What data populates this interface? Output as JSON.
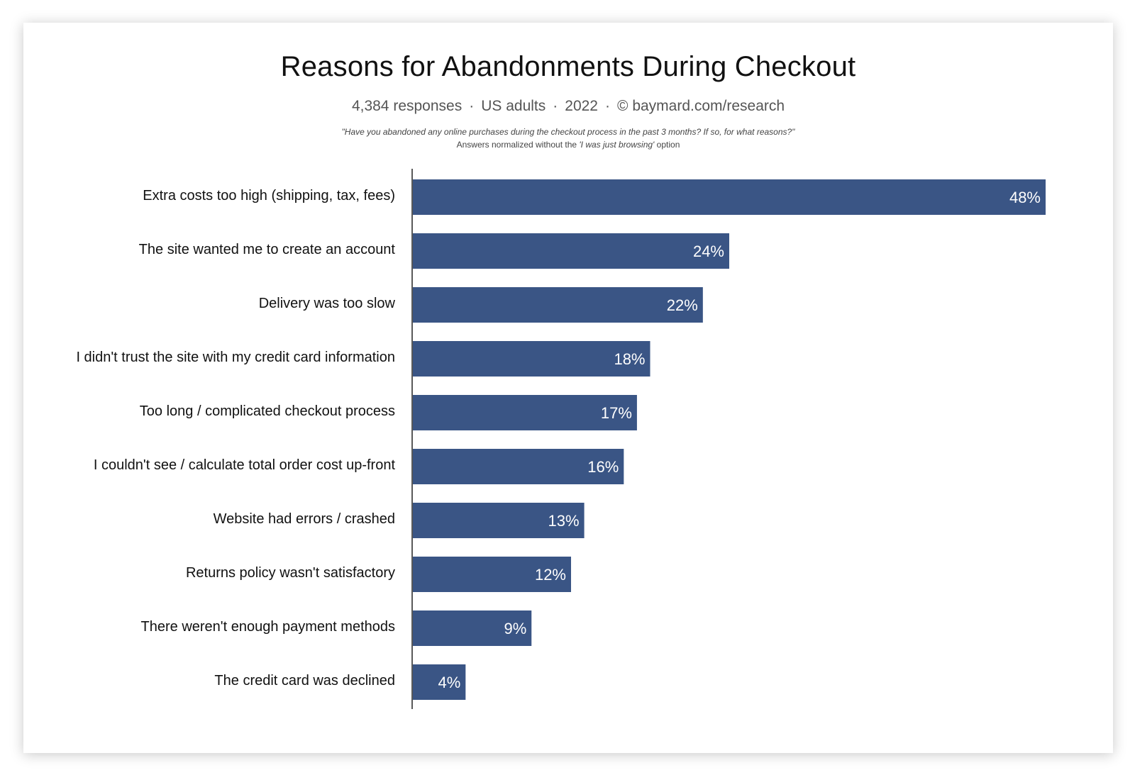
{
  "chart_data": {
    "type": "bar",
    "orientation": "horizontal",
    "title": "Reasons for Abandonments During Checkout",
    "subtitle": {
      "responses": "4,384 responses",
      "audience": "US adults",
      "year": "2022",
      "copyright_symbol": "©",
      "source": "baymard.com/research",
      "separator": "·"
    },
    "question": "\"Have you abandoned any online purchases during the checkout process in the past 3 months? If so, for what reasons?\"",
    "note_prefix": "Answers normalized without the ",
    "note_emphasis": "'I was just browsing'",
    "note_suffix": " option",
    "categories": [
      "Extra costs too high (shipping, tax, fees)",
      "The site wanted me to create an account",
      "Delivery was too slow",
      "I didn't trust the site with my credit card information",
      "Too long / complicated checkout process",
      "I couldn't see / calculate total order cost up-front",
      "Website had errors / crashed",
      "Returns policy wasn't satisfactory",
      "There weren't enough payment methods",
      "The credit card was declined"
    ],
    "values": [
      48,
      24,
      22,
      18,
      17,
      16,
      13,
      12,
      9,
      4
    ],
    "value_suffix": "%",
    "xlim": [
      0,
      48
    ],
    "bar_color": "#3a5585",
    "grid": false,
    "legend": "none"
  }
}
